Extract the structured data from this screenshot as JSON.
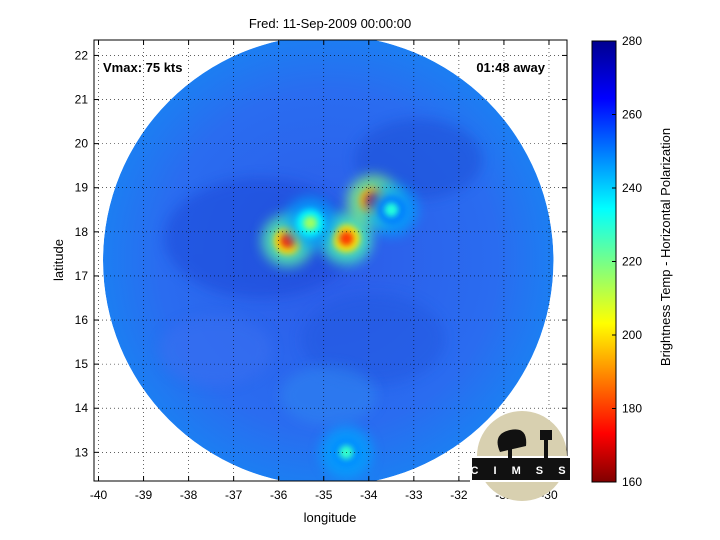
{
  "chart_data": {
    "type": "heatmap",
    "title": "Fred: 11-Sep-2009 00:00:00",
    "xlabel": "longitude",
    "ylabel": "latitude",
    "xlim": [
      -40.1,
      -29.6
    ],
    "ylim": [
      12.35,
      22.35
    ],
    "x_ticks": [
      -40,
      -39,
      -38,
      -37,
      -36,
      -35,
      -34,
      -33,
      -32,
      -31,
      -30
    ],
    "y_ticks": [
      13,
      14,
      15,
      16,
      17,
      18,
      19,
      20,
      21,
      22
    ],
    "grid": true,
    "annotations": {
      "vmax": "Vmax: 75 kts",
      "time_away": "01:48 away"
    },
    "colorbar": {
      "label": "Brightness Temp - Horizontal Polarization",
      "range": [
        160,
        280
      ],
      "ticks": [
        160,
        180,
        200,
        220,
        240,
        260,
        280
      ]
    },
    "field": {
      "background_value": 258,
      "swath_center": [
        -34.9,
        17.35
      ],
      "swath_radius_deg": 5.0,
      "cold_features": [
        {
          "lon": -35.8,
          "lat": 17.8,
          "value": 178
        },
        {
          "lon": -34.5,
          "lat": 17.85,
          "value": 180
        },
        {
          "lon": -33.9,
          "lat": 18.7,
          "value": 172
        },
        {
          "lon": -35.3,
          "lat": 18.2,
          "value": 215
        },
        {
          "lon": -33.5,
          "lat": 18.5,
          "value": 230
        },
        {
          "lon": -34.5,
          "lat": 13.0,
          "value": 228
        }
      ]
    }
  },
  "logo": {
    "text": "CIMSS"
  }
}
